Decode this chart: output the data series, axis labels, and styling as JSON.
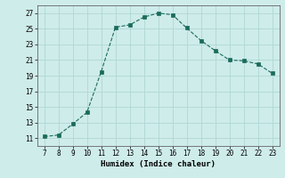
{
  "x": [
    7,
    8,
    9,
    10,
    11,
    12,
    13,
    14,
    15,
    16,
    17,
    18,
    19,
    20,
    21,
    22,
    23
  ],
  "y": [
    11.2,
    11.4,
    12.8,
    14.3,
    19.5,
    25.2,
    25.5,
    26.5,
    27.0,
    26.8,
    25.1,
    23.5,
    22.2,
    21.0,
    20.9,
    20.5,
    19.3
  ],
  "line_color": "#1a6b5a",
  "marker_color": "#1a6b5a",
  "bg_color": "#ceecea",
  "grid_color": "#aed8d4",
  "xlabel": "Humidex (Indice chaleur)",
  "xlim": [
    6.5,
    23.5
  ],
  "ylim": [
    10,
    28
  ],
  "xticks": [
    7,
    8,
    9,
    10,
    11,
    12,
    13,
    14,
    15,
    16,
    17,
    18,
    19,
    20,
    21,
    22,
    23
  ],
  "yticks": [
    11,
    13,
    15,
    17,
    19,
    21,
    23,
    25,
    27
  ],
  "tick_fontsize": 5.5,
  "xlabel_fontsize": 6.5
}
